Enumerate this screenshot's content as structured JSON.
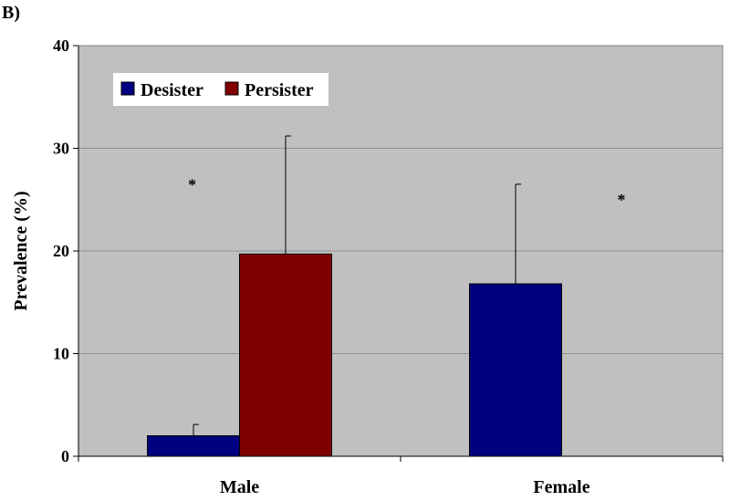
{
  "panel_label": "B)",
  "chart_data": {
    "type": "bar",
    "ylabel": "Prevalence (%)",
    "xlabel": "",
    "ylim": [
      0,
      40
    ],
    "yticks": [
      "0",
      "10",
      "20",
      "30",
      "40"
    ],
    "grid": true,
    "categories": [
      "Male",
      "Female"
    ],
    "series": [
      {
        "name": "Desister",
        "values": [
          2.0,
          16.8
        ],
        "errors": [
          1.1,
          9.7
        ],
        "color": "#000080"
      },
      {
        "name": "Persister",
        "values": [
          19.7,
          0.0
        ],
        "errors": [
          11.5,
          0.0
        ],
        "color": "#800000"
      }
    ],
    "annotations": [
      {
        "text": "*",
        "category": "Male",
        "y": 27
      },
      {
        "text": "*",
        "category": "Female",
        "y": 25.5
      }
    ],
    "legend_position": "top-left",
    "plot_background": "#c0c0c0"
  }
}
